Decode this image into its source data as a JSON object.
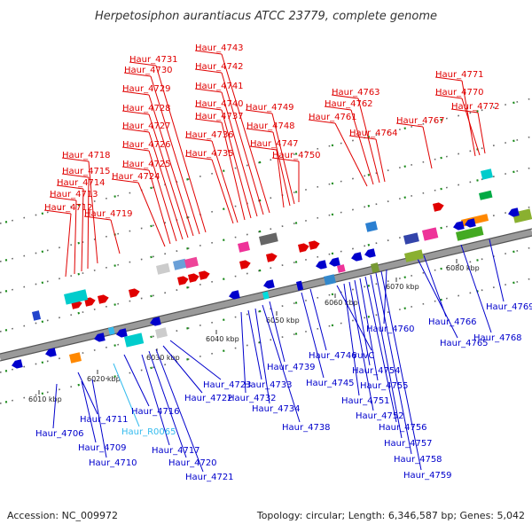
{
  "title": "Herpetosiphon aurantiacus ATCC 23779, complete genome",
  "footer": {
    "accession": "Accession: NC_009972",
    "summary": "Topology: circular; Length: 6,346,587 bp; Genes: 5,042"
  },
  "scale_labels": [
    "6010 kbp",
    "6020 kbp",
    "6030 kbp",
    "6040 kbp",
    "6050 kbp",
    "6060 kbp",
    "6070 kbp",
    "6080 kbp"
  ],
  "colors": {
    "forward": "#e00000",
    "reverse": "#0000cc",
    "rna": "#33bbee",
    "backbone": "#808080"
  },
  "forward_genes": [
    "Haur_4712",
    "Haur_4713",
    "Haur_4714",
    "Haur_4715",
    "Haur_4718",
    "Haur_4719",
    "Haur_4724",
    "Haur_4725",
    "Haur_4726",
    "Haur_4727",
    "Haur_4728",
    "Haur_4729",
    "Haur_4730",
    "Haur_4731",
    "Haur_4735",
    "Haur_4736",
    "Haur_4737",
    "Haur_4740",
    "Haur_4741",
    "Haur_4742",
    "Haur_4743",
    "Haur_4747",
    "Haur_4748",
    "Haur_4749",
    "Haur_4750",
    "Haur_4761",
    "Haur_4762",
    "Haur_4763",
    "Haur_4764",
    "Haur_4767",
    "Haur_4770",
    "Haur_4771",
    "Haur_4772"
  ],
  "reverse_genes": [
    "Haur_4706",
    "Haur_4709",
    "Haur_4710",
    "Haur_4711",
    "Haur_4716",
    "Haur_R0065",
    "Haur_4717",
    "Haur_4720",
    "Haur_4721",
    "Haur_4722",
    "Haur_4723",
    "Haur_4732",
    "Haur_4733",
    "Haur_4734",
    "Haur_4738",
    "Haur_4739",
    "Haur_4745",
    "Haur_4746",
    "ruvC",
    "Haur_4751",
    "Haur_4752",
    "Haur_4754",
    "Haur_4755",
    "Haur_4756",
    "Haur_4757",
    "Haur_4758",
    "Haur_4759",
    "Haur_4760",
    "Haur_4765",
    "Haur_4766",
    "Haur_4768",
    "Haur_4769"
  ]
}
